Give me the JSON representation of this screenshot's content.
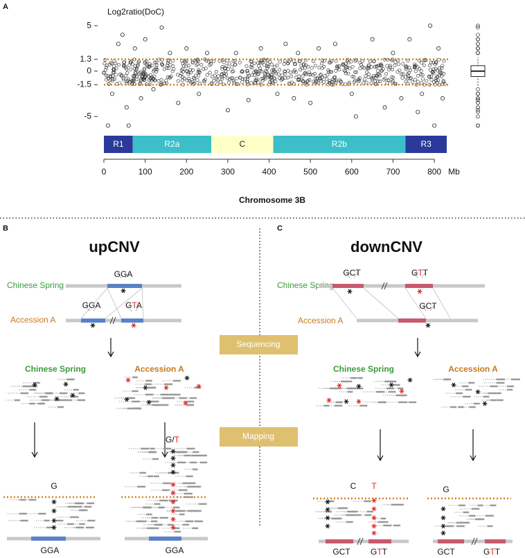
{
  "chart_data": {
    "type": "scatter",
    "panel_label": "A",
    "y_label": "Log2ratio(DoC)",
    "x_label": "Chromosome 3B",
    "x_unit": "Mb",
    "xlim": [
      0,
      830
    ],
    "xticks": [
      0,
      100,
      200,
      300,
      400,
      500,
      600,
      700,
      800
    ],
    "ylim": [
      -6.2,
      6
    ],
    "yticks": [
      5,
      1.3,
      0,
      -1.5,
      -5
    ],
    "thresholds": [
      1.3,
      -1.5
    ],
    "threshold_color": "#d08020",
    "x": [
      10,
      20,
      35,
      45,
      55,
      60,
      75,
      90,
      100,
      120,
      140,
      160,
      180,
      200,
      230,
      250,
      300,
      320,
      350,
      380,
      420,
      440,
      460,
      470,
      500,
      520,
      560,
      600,
      610,
      650,
      680,
      700,
      720,
      740,
      760,
      770,
      790,
      800,
      810,
      820
    ],
    "y": [
      -6,
      -2.5,
      3,
      4,
      -4,
      -6,
      2.5,
      -3,
      3.5,
      -2,
      4.8,
      2,
      -3.5,
      2.5,
      -2.5,
      2,
      -4.3,
      2,
      -3.2,
      2.5,
      -2.5,
      3,
      -3,
      2,
      -3.5,
      2.5,
      3,
      -2.5,
      -5,
      3.5,
      -4,
      2,
      -3,
      3.5,
      -4.5,
      -2.5,
      5,
      -6,
      2.5,
      -3
    ],
    "regions": [
      {
        "label": "R1",
        "start": 0,
        "end": 70,
        "color": "#2b3a9a"
      },
      {
        "label": "R2a",
        "start": 70,
        "end": 260,
        "color": "#3cbfc8"
      },
      {
        "label": "C",
        "start": 260,
        "end": 410,
        "color": "#ffffc8"
      },
      {
        "label": "R2b",
        "start": 410,
        "end": 730,
        "color": "#3cbfc8"
      },
      {
        "label": "R3",
        "start": 730,
        "end": 830,
        "color": "#2b3a9a"
      }
    ],
    "boxplot": {
      "whisker_low": -1.6,
      "q1": -0.6,
      "median": 0,
      "q3": 0.6,
      "whisker_high": 1.5
    }
  },
  "steps": [
    "Sequencing",
    "Mapping"
  ],
  "upcnv": {
    "panel_label": "B",
    "title": "upCNV",
    "ref_label": "Chinese Spring",
    "acc_label": "Accession A",
    "top_ref_codon": "GGA",
    "top_acc_codon_1": "GGA",
    "top_acc_codon_2": [
      "G",
      "T",
      "A"
    ],
    "reads_ref_label": "Chinese Spring",
    "reads_acc_label": "Accession A",
    "map_ref_snp": "G",
    "map_acc_snp": [
      "G",
      "/",
      "T"
    ],
    "map_ref_codon": "GGA",
    "map_acc_codon": "GGA"
  },
  "downcnv": {
    "panel_label": "C",
    "title": "downCNV",
    "ref_label": "Chinese Spring",
    "acc_label": "Accession A",
    "top_ref_codon_1": "GCT",
    "top_ref_codon_2": [
      "G",
      "T",
      "T"
    ],
    "top_acc_codon": "GCT",
    "reads_ref_label": "Chinese Spring",
    "reads_acc_label": "Accession A",
    "map_ref_snp_1": "C",
    "map_ref_snp_2": "T",
    "map_acc_snp": "G",
    "map_ref_codon_1": "GCT",
    "map_ref_codon_2": [
      "G",
      "T",
      "T"
    ],
    "map_acc_codon_1": "GCT",
    "map_acc_codon_2": [
      "G",
      "T",
      "T"
    ]
  }
}
